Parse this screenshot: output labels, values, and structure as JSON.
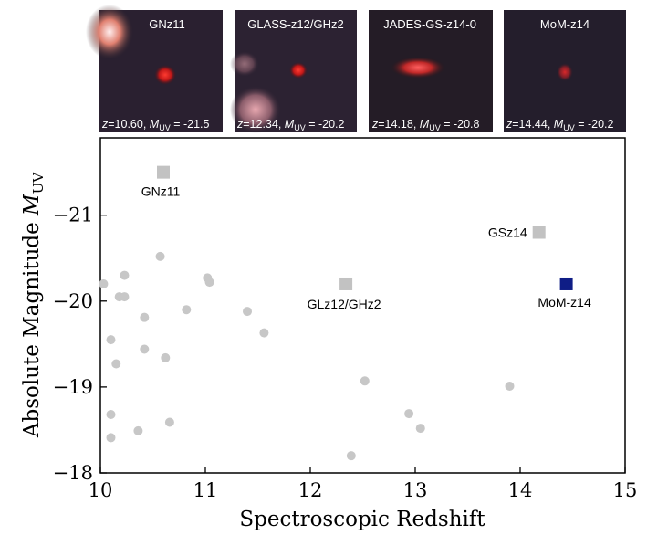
{
  "chart_data": {
    "type": "scatter",
    "xlabel": "Spectroscopic Redshift",
    "ylabel": "Absolute Magnitude M_UV",
    "ylabel_main": "Absolute Magnitude ",
    "ylabel_sym": "M",
    "ylabel_sub": "UV",
    "xlim": [
      10,
      15
    ],
    "ylim": [
      -18,
      -21.9
    ],
    "y_inverted": true,
    "xticks": [
      10,
      11,
      12,
      13,
      14,
      15
    ],
    "yticks": [
      -21,
      -20,
      -19,
      -18
    ],
    "grid": false,
    "colors": {
      "background_points": "#c7c7c7",
      "highlight_points": "#c2c2c2",
      "mom_z14": "#0f1d86",
      "axes": "#000000"
    },
    "background_points": [
      {
        "x": 10.03,
        "y": -20.2
      },
      {
        "x": 10.1,
        "y": -19.55
      },
      {
        "x": 10.1,
        "y": -18.68
      },
      {
        "x": 10.1,
        "y": -18.41
      },
      {
        "x": 10.15,
        "y": -19.27
      },
      {
        "x": 10.18,
        "y": -20.05
      },
      {
        "x": 10.23,
        "y": -20.05
      },
      {
        "x": 10.23,
        "y": -20.3
      },
      {
        "x": 10.36,
        "y": -18.49
      },
      {
        "x": 10.42,
        "y": -19.81
      },
      {
        "x": 10.42,
        "y": -19.44
      },
      {
        "x": 10.57,
        "y": -20.52
      },
      {
        "x": 10.62,
        "y": -19.34
      },
      {
        "x": 10.66,
        "y": -18.59
      },
      {
        "x": 10.82,
        "y": -19.9
      },
      {
        "x": 11.02,
        "y": -20.27
      },
      {
        "x": 11.04,
        "y": -20.22
      },
      {
        "x": 11.4,
        "y": -19.88
      },
      {
        "x": 11.56,
        "y": -19.63
      },
      {
        "x": 12.39,
        "y": -18.2
      },
      {
        "x": 12.52,
        "y": -19.07
      },
      {
        "x": 12.94,
        "y": -18.69
      },
      {
        "x": 13.05,
        "y": -18.52
      },
      {
        "x": 13.9,
        "y": -19.01
      }
    ],
    "highlighted": [
      {
        "name": "GNz11",
        "x": 10.6,
        "y": -21.5,
        "label": "GNz11"
      },
      {
        "name": "GLz12/GHz2",
        "x": 12.34,
        "y": -20.2,
        "label": "GLz12/GHz2"
      },
      {
        "name": "GSz14",
        "x": 14.18,
        "y": -20.8,
        "label": "GSz14"
      },
      {
        "name": "MoM-z14",
        "x": 14.44,
        "y": -20.2,
        "label": "MoM-z14"
      }
    ]
  },
  "thumbnails": [
    {
      "name": "GNz11",
      "title": "GNz11",
      "caption_z": "z",
      "caption_zval": "=10.60, ",
      "caption_m": "M",
      "caption_sub": "UV",
      "caption_mval": " = -21.5"
    },
    {
      "name": "GLASS-z12/GHz2",
      "title": "GLASS-z12/GHz2",
      "caption_z": "z",
      "caption_zval": "=12.34, ",
      "caption_m": "M",
      "caption_sub": "UV",
      "caption_mval": " = -20.2"
    },
    {
      "name": "JADES-GS-z14-0",
      "title": "JADES-GS-z14-0",
      "caption_z": "z",
      "caption_zval": "=14.18, ",
      "caption_m": "M",
      "caption_sub": "UV",
      "caption_mval": " = -20.8"
    },
    {
      "name": "MoM-z14",
      "title": "MoM-z14",
      "caption_z": "z",
      "caption_zval": "=14.44, ",
      "caption_m": "M",
      "caption_sub": "UV",
      "caption_mval": " = -20.2"
    }
  ]
}
